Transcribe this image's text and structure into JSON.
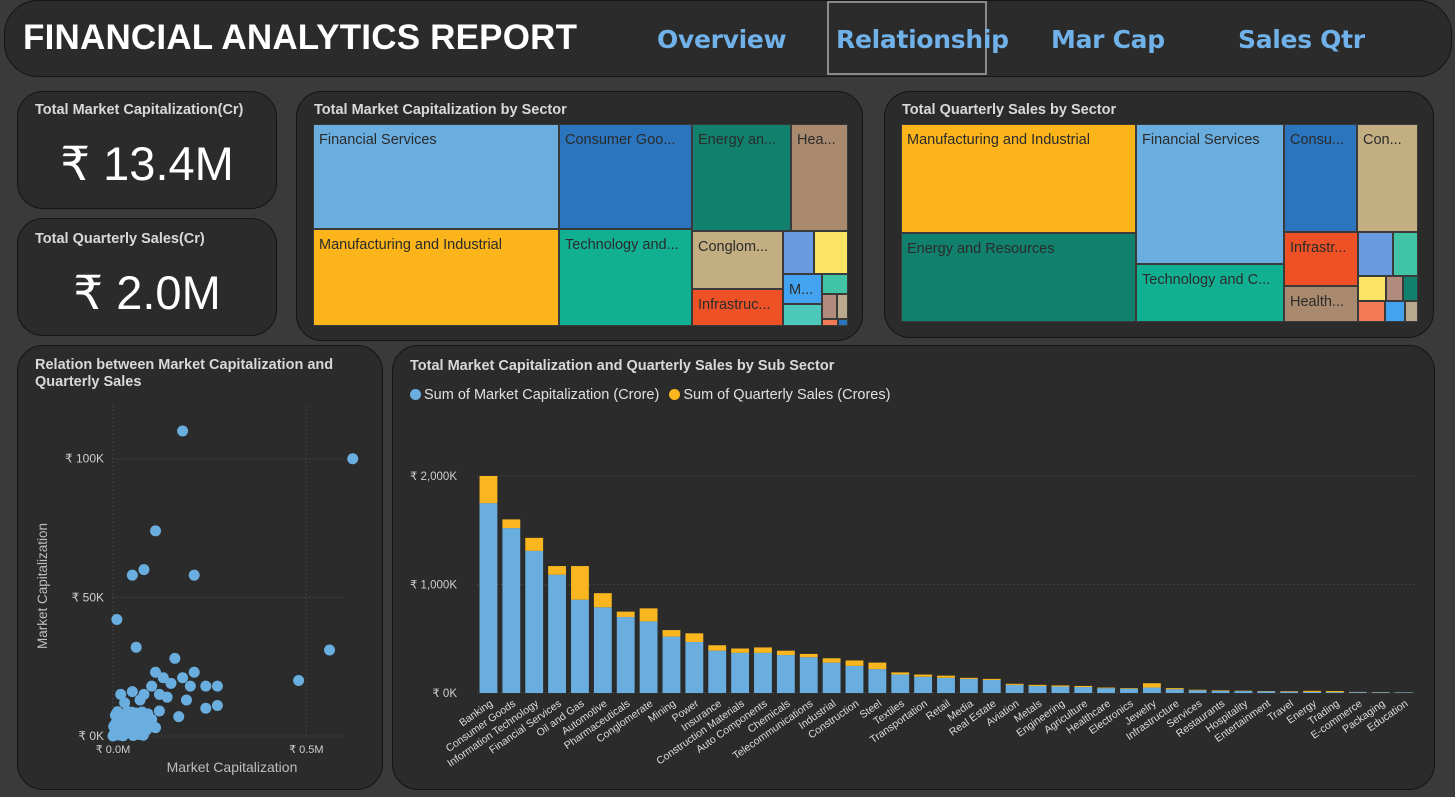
{
  "header": {
    "title": "FINANCIAL ANALYTICS REPORT",
    "tabs": [
      "Overview",
      "Relationship",
      "Mar Cap",
      "Sales Qtr"
    ],
    "active_tab": "Relationship"
  },
  "kpis": {
    "market_cap": {
      "title": "Total Market Capitalization(Cr)",
      "value": "₹ 13.4M"
    },
    "quarterly_sales": {
      "title": "Total Quarterly Sales(Cr)",
      "value": "₹ 2.0M"
    }
  },
  "treemap_mc": {
    "title": "Total Market Capitalization by Sector",
    "labels": [
      "Financial Services",
      "Consumer Goo...",
      "Energy an...",
      "Hea...",
      "Manufacturing and Industrial",
      "Technology and...",
      "Conglom...",
      "Infrastruc...",
      "M..."
    ]
  },
  "treemap_qs": {
    "title": "Total Quarterly Sales by Sector",
    "labels": [
      "Manufacturing and Industrial",
      "Financial Services",
      "Consu...",
      "Con...",
      "Energy and Resources",
      "Technology and C...",
      "Infrastr...",
      "Health..."
    ]
  },
  "colors": {
    "blue_light": "#6aaee0",
    "blue_dark": "#2b75bf",
    "teal_dark": "#11806c",
    "tan": "#a98a6e",
    "yellow": "#fbb419",
    "teal": "#12b093",
    "beige": "#c3ae82",
    "orange_red": "#ef5127",
    "series_mc": "#6aaee0",
    "series_qs": "#f9b61e"
  },
  "scatter": {
    "title_line1": "Relation between Market Capitalization and",
    "title_line2": "Quarterly Sales",
    "xlabel": "Market Capitalization",
    "ylabel": "Market Capitalization",
    "y_ticks": [
      "₹ 100K",
      "₹ 50K",
      "₹ 0K"
    ],
    "x_ticks": [
      "₹ 0.0M",
      "₹ 0.5M"
    ]
  },
  "bar": {
    "title": "Total Market Capitalization and Quarterly Sales by Sub Sector",
    "legend": [
      "Sum of Market Capitalization (Crore)",
      "Sum of Quarterly Sales (Crores)"
    ],
    "y_ticks": [
      "₹ 2,000K",
      "₹ 1,000K",
      "₹ 0K"
    ]
  },
  "chart_data": [
    {
      "type": "scatter",
      "title": "Relation between Market Capitalization and Quarterly Sales",
      "xlabel": "Market Capitalization",
      "ylabel": "Market Capitalization",
      "xlim": [
        0,
        0.6
      ],
      "ylim": [
        0,
        110
      ],
      "x_unit": "₹ M",
      "y_unit": "₹ K",
      "points": [
        [
          0.18,
          110
        ],
        [
          0.62,
          100
        ],
        [
          0.11,
          74
        ],
        [
          0.05,
          58
        ],
        [
          0.08,
          60
        ],
        [
          0.21,
          58
        ],
        [
          0.01,
          42
        ],
        [
          0.56,
          31
        ],
        [
          0.06,
          32
        ],
        [
          0.16,
          28
        ],
        [
          0.11,
          23
        ],
        [
          0.21,
          23
        ],
        [
          0.13,
          21
        ],
        [
          0.18,
          21
        ],
        [
          0.15,
          19
        ],
        [
          0.2,
          18
        ],
        [
          0.24,
          18
        ],
        [
          0.27,
          18
        ],
        [
          0.48,
          20
        ],
        [
          0.1,
          18
        ],
        [
          0.05,
          16
        ],
        [
          0.02,
          15
        ],
        [
          0.12,
          15
        ],
        [
          0.08,
          15
        ],
        [
          0.14,
          14
        ],
        [
          0.19,
          13
        ],
        [
          0.07,
          13
        ],
        [
          0.03,
          12
        ],
        [
          0.27,
          11
        ],
        [
          0.24,
          10
        ],
        [
          0.12,
          9
        ],
        [
          0.17,
          7
        ],
        [
          0.02,
          7
        ],
        [
          0.06,
          8
        ],
        [
          0.09,
          8
        ],
        [
          0.04,
          6
        ],
        [
          0.01,
          4
        ],
        [
          0.03,
          3
        ],
        [
          0.05,
          5
        ],
        [
          0.08,
          4
        ],
        [
          0.1,
          6
        ],
        [
          0.11,
          3
        ]
      ]
    },
    {
      "type": "bar",
      "stacked": true,
      "title": "Total Market Capitalization and Quarterly Sales by Sub Sector",
      "ylim": [
        0,
        2100
      ],
      "y_unit": "₹ K",
      "categories": [
        "Banking",
        "Consumer Goods",
        "Information Technology",
        "Financial Services",
        "Oil and Gas",
        "Automotive",
        "Pharmaceuticals",
        "Conglomerate",
        "Mining",
        "Power",
        "Insurance",
        "Construction Materials",
        "Auto Components",
        "Chemicals",
        "Telecommunications",
        "Industrial",
        "Construction",
        "Steel",
        "Textiles",
        "Transportation",
        "Retail",
        "Media",
        "Real Estate",
        "Aviation",
        "Metals",
        "Engineering",
        "Agriculture",
        "Healthcare",
        "Electronics",
        "Jewelry",
        "Infrastructure",
        "Services",
        "Restaurants",
        "Hospitality",
        "Entertainment",
        "Travel",
        "Energy",
        "Trading",
        "E-commerce",
        "Packaging",
        "Education"
      ],
      "series": [
        {
          "name": "Sum of Market Capitalization (Crore)",
          "values": [
            1750,
            1520,
            1310,
            1090,
            860,
            790,
            700,
            660,
            520,
            470,
            390,
            370,
            370,
            350,
            330,
            280,
            250,
            220,
            170,
            150,
            140,
            130,
            120,
            75,
            65,
            60,
            55,
            45,
            40,
            50,
            35,
            25,
            20,
            18,
            15,
            12,
            10,
            8,
            8,
            6,
            5
          ]
        },
        {
          "name": "Sum of Quarterly Sales (Crores)",
          "values": [
            250,
            80,
            120,
            80,
            310,
            130,
            50,
            120,
            60,
            80,
            50,
            40,
            50,
            40,
            30,
            40,
            50,
            60,
            20,
            20,
            20,
            10,
            10,
            10,
            10,
            10,
            10,
            5,
            5,
            40,
            10,
            5,
            5,
            3,
            3,
            5,
            10,
            10,
            2,
            2,
            1
          ]
        }
      ]
    }
  ]
}
